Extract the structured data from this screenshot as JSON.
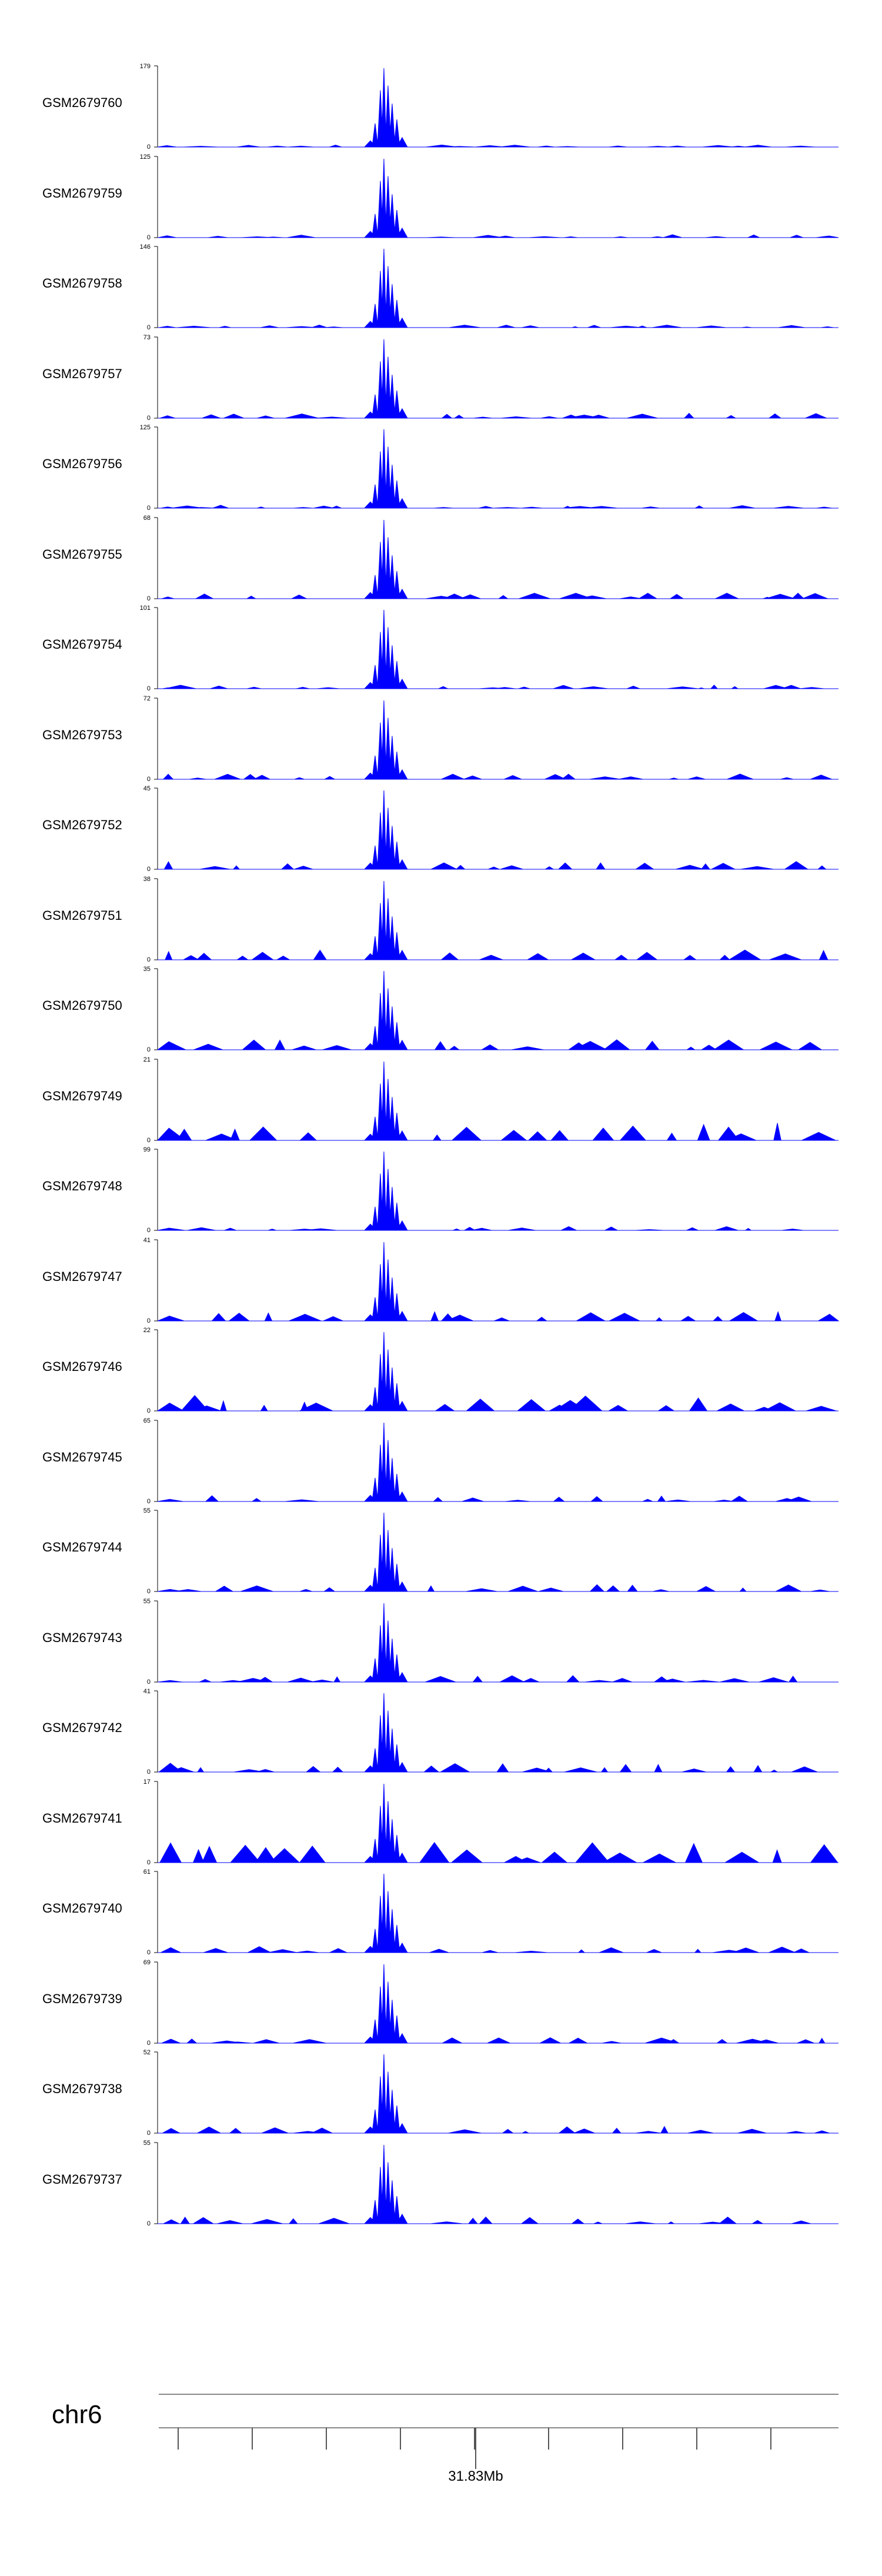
{
  "chart_data": {
    "type": "area",
    "title": "",
    "chromosome": "chr6",
    "x_tick_label": "31.83Mb",
    "fill_color": "#0000ff",
    "axis_color": "#000000",
    "peak_fraction": 0.335,
    "tracks": [
      {
        "name": "GSM2679760",
        "ymin": 0,
        "ymax": 179
      },
      {
        "name": "GSM2679759",
        "ymin": 0,
        "ymax": 125
      },
      {
        "name": "GSM2679758",
        "ymin": 0,
        "ymax": 146
      },
      {
        "name": "GSM2679757",
        "ymin": 0,
        "ymax": 73
      },
      {
        "name": "GSM2679756",
        "ymin": 0,
        "ymax": 125
      },
      {
        "name": "GSM2679755",
        "ymin": 0,
        "ymax": 68
      },
      {
        "name": "GSM2679754",
        "ymin": 0,
        "ymax": 101
      },
      {
        "name": "GSM2679753",
        "ymin": 0,
        "ymax": 72
      },
      {
        "name": "GSM2679752",
        "ymin": 0,
        "ymax": 45
      },
      {
        "name": "GSM2679751",
        "ymin": 0,
        "ymax": 38
      },
      {
        "name": "GSM2679750",
        "ymin": 0,
        "ymax": 35
      },
      {
        "name": "GSM2679749",
        "ymin": 0,
        "ymax": 21
      },
      {
        "name": "GSM2679748",
        "ymin": 0,
        "ymax": 99
      },
      {
        "name": "GSM2679747",
        "ymin": 0,
        "ymax": 41
      },
      {
        "name": "GSM2679746",
        "ymin": 0,
        "ymax": 22
      },
      {
        "name": "GSM2679745",
        "ymin": 0,
        "ymax": 65
      },
      {
        "name": "GSM2679744",
        "ymin": 0,
        "ymax": 55
      },
      {
        "name": "GSM2679743",
        "ymin": 0,
        "ymax": 55
      },
      {
        "name": "GSM2679742",
        "ymin": 0,
        "ymax": 41
      },
      {
        "name": "GSM2679741",
        "ymin": 0,
        "ymax": 17
      },
      {
        "name": "GSM2679740",
        "ymin": 0,
        "ymax": 61
      },
      {
        "name": "GSM2679739",
        "ymin": 0,
        "ymax": 69
      },
      {
        "name": "GSM2679738",
        "ymin": 0,
        "ymax": 52
      },
      {
        "name": "GSM2679737",
        "ymin": 0,
        "ymax": 55
      }
    ]
  }
}
